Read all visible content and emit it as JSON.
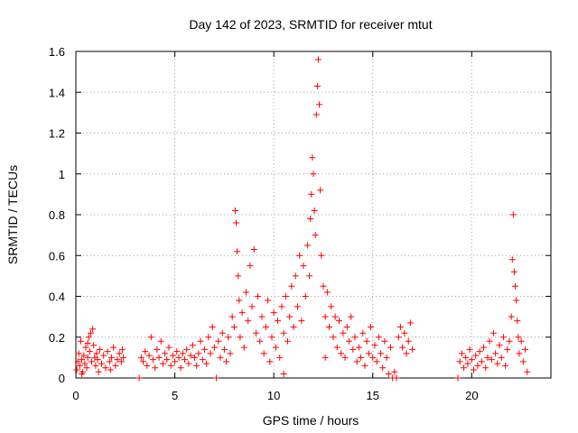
{
  "chart_data": {
    "type": "scatter",
    "title": "Day 142 of 2023, SRMTID for receiver mtut",
    "xlabel": "GPS time / hours",
    "ylabel": "SRMTID / TECUs",
    "xlim": [
      0,
      24
    ],
    "ylim": [
      0,
      1.6
    ],
    "xticks": [
      "0",
      "5",
      "10",
      "15",
      "20"
    ],
    "yticks": [
      "0",
      "0.2",
      "0.4",
      "0.6",
      "0.8",
      "1",
      "1.2",
      "1.4",
      "1.6"
    ],
    "grid": true,
    "marker": "+",
    "color": "#ff0000",
    "series": [
      {
        "points": [
          [
            0.05,
            0.04
          ],
          [
            0.1,
            0.08
          ],
          [
            0.15,
            0.12
          ],
          [
            0.2,
            0.06
          ],
          [
            0.25,
            0.18
          ],
          [
            0.3,
            0.09
          ],
          [
            0.35,
            0.03
          ],
          [
            0.4,
            0.11
          ],
          [
            0.45,
            0.07
          ],
          [
            0.5,
            0.15
          ],
          [
            0.55,
            0.05
          ],
          [
            0.6,
            0.1
          ],
          [
            0.65,
            0.2
          ],
          [
            0.7,
            0.13
          ],
          [
            0.75,
            0.22
          ],
          [
            0.8,
            0.08
          ],
          [
            0.85,
            0.24
          ],
          [
            0.9,
            0.16
          ],
          [
            0.95,
            0.1
          ],
          [
            1.0,
            0.06
          ],
          [
            1.05,
            0.12
          ],
          [
            1.1,
            0.09
          ],
          [
            1.2,
            0.14
          ],
          [
            1.3,
            0.07
          ],
          [
            1.4,
            0.11
          ],
          [
            1.5,
            0.05
          ],
          [
            1.6,
            0.13
          ],
          [
            1.7,
            0.08
          ],
          [
            1.8,
            0.1
          ],
          [
            1.9,
            0.15
          ],
          [
            2.0,
            0.06
          ],
          [
            2.1,
            0.09
          ],
          [
            2.2,
            0.12
          ],
          [
            2.3,
            0.08
          ],
          [
            2.35,
            0.14
          ],
          [
            2.4,
            0.1
          ],
          [
            0.3,
            0.02
          ],
          [
            0.6,
            0.17
          ],
          [
            1.15,
            0.03
          ],
          [
            1.75,
            0.04
          ],
          [
            3.2,
            0.0
          ],
          [
            3.3,
            0.1
          ],
          [
            3.4,
            0.08
          ],
          [
            3.5,
            0.13
          ],
          [
            3.6,
            0.06
          ],
          [
            3.7,
            0.11
          ],
          [
            3.8,
            0.2
          ],
          [
            3.9,
            0.09
          ],
          [
            4.0,
            0.05
          ],
          [
            4.1,
            0.14
          ],
          [
            4.2,
            0.1
          ],
          [
            4.3,
            0.18
          ],
          [
            4.4,
            0.07
          ],
          [
            4.5,
            0.12
          ],
          [
            4.6,
            0.09
          ],
          [
            4.7,
            0.15
          ],
          [
            4.8,
            0.06
          ],
          [
            4.9,
            0.11
          ],
          [
            5.0,
            0.08
          ],
          [
            5.1,
            0.13
          ],
          [
            5.2,
            0.1
          ],
          [
            5.3,
            0.05
          ],
          [
            5.4,
            0.12
          ],
          [
            5.5,
            0.09
          ],
          [
            5.6,
            0.14
          ],
          [
            5.7,
            0.07
          ],
          [
            5.8,
            0.11
          ],
          [
            5.9,
            0.16
          ],
          [
            6.0,
            0.1
          ],
          [
            6.1,
            0.06
          ],
          [
            6.2,
            0.12
          ],
          [
            6.3,
            0.18
          ],
          [
            6.4,
            0.09
          ],
          [
            6.5,
            0.14
          ],
          [
            6.6,
            0.07
          ],
          [
            6.7,
            0.2
          ],
          [
            6.8,
            0.12
          ],
          [
            6.9,
            0.25
          ],
          [
            7.0,
            0.15
          ],
          [
            7.1,
            0.0
          ],
          [
            7.2,
            0.18
          ],
          [
            7.3,
            0.1
          ],
          [
            7.4,
            0.22
          ],
          [
            7.5,
            0.14
          ],
          [
            7.6,
            0.08
          ],
          [
            7.7,
            0.2
          ],
          [
            7.8,
            0.12
          ],
          [
            7.9,
            0.3
          ],
          [
            8.0,
            0.25
          ],
          [
            8.05,
            0.82
          ],
          [
            8.1,
            0.76
          ],
          [
            8.15,
            0.62
          ],
          [
            8.2,
            0.5
          ],
          [
            8.25,
            0.38
          ],
          [
            8.3,
            0.2
          ],
          [
            8.4,
            0.32
          ],
          [
            8.5,
            0.15
          ],
          [
            8.6,
            0.42
          ],
          [
            8.7,
            0.28
          ],
          [
            8.8,
            0.55
          ],
          [
            8.9,
            0.35
          ],
          [
            9.0,
            0.63
          ],
          [
            9.1,
            0.22
          ],
          [
            9.2,
            0.4
          ],
          [
            9.3,
            0.18
          ],
          [
            9.4,
            0.3
          ],
          [
            9.5,
            0.12
          ],
          [
            9.6,
            0.25
          ],
          [
            9.7,
            0.38
          ],
          [
            9.8,
            0.08
          ],
          [
            9.9,
            0.2
          ],
          [
            10.0,
            0.32
          ],
          [
            10.1,
            0.15
          ],
          [
            10.2,
            0.28
          ],
          [
            10.3,
            0.1
          ],
          [
            10.4,
            0.35
          ],
          [
            10.5,
            0.22
          ],
          [
            10.6,
            0.4
          ],
          [
            10.7,
            0.18
          ],
          [
            10.8,
            0.3
          ],
          [
            10.9,
            0.45
          ],
          [
            11.0,
            0.25
          ],
          [
            11.1,
            0.5
          ],
          [
            11.2,
            0.35
          ],
          [
            11.3,
            0.6
          ],
          [
            11.4,
            0.28
          ],
          [
            11.5,
            0.55
          ],
          [
            11.6,
            0.4
          ],
          [
            11.7,
            0.65
          ],
          [
            11.8,
            0.5
          ],
          [
            11.85,
            0.78
          ],
          [
            11.9,
            0.9
          ],
          [
            11.95,
            1.08
          ],
          [
            12.0,
            1.0
          ],
          [
            12.05,
            0.82
          ],
          [
            12.1,
            0.7
          ],
          [
            12.15,
            1.29
          ],
          [
            12.2,
            1.43
          ],
          [
            12.25,
            1.56
          ],
          [
            12.3,
            1.34
          ],
          [
            12.35,
            0.92
          ],
          [
            12.4,
            0.6
          ],
          [
            12.5,
            0.45
          ],
          [
            12.6,
            0.3
          ],
          [
            12.7,
            0.42
          ],
          [
            12.8,
            0.25
          ],
          [
            12.9,
            0.35
          ],
          [
            13.0,
            0.2
          ],
          [
            13.1,
            0.3
          ],
          [
            13.2,
            0.15
          ],
          [
            13.3,
            0.28
          ],
          [
            13.4,
            0.12
          ],
          [
            13.5,
            0.22
          ],
          [
            13.6,
            0.1
          ],
          [
            13.7,
            0.25
          ],
          [
            13.8,
            0.18
          ],
          [
            13.9,
            0.3
          ],
          [
            14.0,
            0.14
          ],
          [
            14.1,
            0.2
          ],
          [
            14.2,
            0.08
          ],
          [
            14.3,
            0.15
          ],
          [
            14.4,
            0.1
          ],
          [
            14.5,
            0.22
          ],
          [
            14.6,
            0.06
          ],
          [
            14.7,
            0.18
          ],
          [
            14.8,
            0.12
          ],
          [
            14.9,
            0.25
          ],
          [
            15.0,
            0.1
          ],
          [
            15.1,
            0.16
          ],
          [
            15.2,
            0.08
          ],
          [
            15.3,
            0.2
          ],
          [
            15.4,
            0.12
          ],
          [
            15.5,
            0.05
          ],
          [
            15.6,
            0.18
          ],
          [
            15.7,
            0.1
          ],
          [
            15.8,
            0.02
          ],
          [
            15.9,
            0.15
          ],
          [
            16.0,
            0.0
          ],
          [
            16.1,
            0.03
          ],
          [
            16.2,
            0.0
          ],
          [
            16.3,
            0.2
          ],
          [
            16.4,
            0.25
          ],
          [
            16.5,
            0.15
          ],
          [
            16.6,
            0.22
          ],
          [
            16.7,
            0.12
          ],
          [
            16.8,
            0.18
          ],
          [
            16.9,
            0.27
          ],
          [
            17.0,
            0.14
          ],
          [
            10.5,
            0.02
          ],
          [
            12.6,
            0.1
          ],
          [
            19.3,
            0.0
          ],
          [
            19.4,
            0.08
          ],
          [
            19.5,
            0.12
          ],
          [
            19.6,
            0.05
          ],
          [
            19.7,
            0.1
          ],
          [
            19.8,
            0.07
          ],
          [
            19.9,
            0.14
          ],
          [
            20.0,
            0.09
          ],
          [
            20.1,
            0.04
          ],
          [
            20.2,
            0.11
          ],
          [
            20.3,
            0.06
          ],
          [
            20.4,
            0.13
          ],
          [
            20.5,
            0.08
          ],
          [
            20.6,
            0.15
          ],
          [
            20.7,
            0.05
          ],
          [
            20.8,
            0.1
          ],
          [
            20.9,
            0.18
          ],
          [
            21.0,
            0.09
          ],
          [
            21.1,
            0.22
          ],
          [
            21.2,
            0.12
          ],
          [
            21.3,
            0.07
          ],
          [
            21.4,
            0.16
          ],
          [
            21.5,
            0.1
          ],
          [
            21.6,
            0.2
          ],
          [
            21.7,
            0.06
          ],
          [
            21.8,
            0.14
          ],
          [
            21.9,
            0.18
          ],
          [
            22.0,
            0.3
          ],
          [
            22.05,
            0.58
          ],
          [
            22.1,
            0.8
          ],
          [
            22.15,
            0.52
          ],
          [
            22.2,
            0.45
          ],
          [
            22.25,
            0.38
          ],
          [
            22.3,
            0.28
          ],
          [
            22.35,
            0.2
          ],
          [
            22.4,
            0.12
          ],
          [
            22.5,
            0.18
          ],
          [
            22.6,
            0.08
          ],
          [
            22.7,
            0.14
          ],
          [
            22.8,
            0.03
          ]
        ]
      }
    ]
  }
}
